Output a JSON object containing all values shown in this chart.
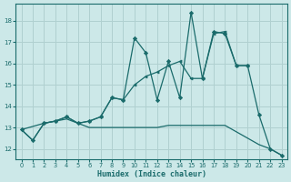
{
  "xlabel": "Humidex (Indice chaleur)",
  "bg_color": "#cce8e8",
  "line_color": "#1a6b6b",
  "grid_color": "#b0d0d0",
  "ylim": [
    11.5,
    18.8
  ],
  "xlim": [
    -0.5,
    23.5
  ],
  "yticks": [
    12,
    13,
    14,
    15,
    16,
    17,
    18
  ],
  "xticks": [
    0,
    1,
    2,
    3,
    4,
    5,
    6,
    7,
    8,
    9,
    10,
    11,
    12,
    13,
    14,
    15,
    16,
    17,
    18,
    19,
    20,
    21,
    22,
    23
  ],
  "line1_x": [
    0,
    1,
    2,
    3,
    4,
    5,
    6,
    7,
    8,
    9,
    10,
    11,
    12,
    13,
    14,
    15,
    16,
    17,
    18,
    19,
    20,
    21,
    22,
    23
  ],
  "line1_y": [
    12.9,
    12.4,
    13.2,
    13.3,
    13.5,
    13.2,
    13.3,
    13.5,
    14.4,
    14.3,
    17.2,
    16.5,
    14.3,
    16.1,
    14.4,
    18.4,
    15.3,
    17.5,
    17.4,
    15.9,
    15.9,
    13.6,
    12.0,
    11.7
  ],
  "line2_x": [
    0,
    2,
    3,
    4,
    5,
    6,
    7,
    8,
    9,
    10,
    11,
    12,
    13,
    14,
    15,
    16,
    17,
    18,
    19,
    20
  ],
  "line2_y": [
    12.9,
    13.2,
    13.3,
    13.5,
    13.2,
    13.3,
    13.5,
    14.4,
    14.3,
    15.0,
    15.4,
    15.6,
    15.9,
    16.1,
    15.3,
    15.3,
    17.4,
    17.5,
    15.9,
    15.9
  ],
  "line3_x": [
    0,
    1,
    2,
    3,
    4,
    5,
    6,
    7,
    8,
    9,
    10,
    11,
    12,
    13,
    14,
    15,
    16,
    17,
    18,
    19,
    20,
    21,
    22,
    23
  ],
  "line3_y": [
    12.9,
    12.4,
    13.2,
    13.3,
    13.4,
    13.2,
    13.0,
    13.0,
    13.0,
    13.0,
    13.0,
    13.0,
    13.0,
    13.1,
    13.1,
    13.1,
    13.1,
    13.1,
    13.1,
    12.8,
    12.5,
    12.2,
    12.0,
    11.7
  ]
}
